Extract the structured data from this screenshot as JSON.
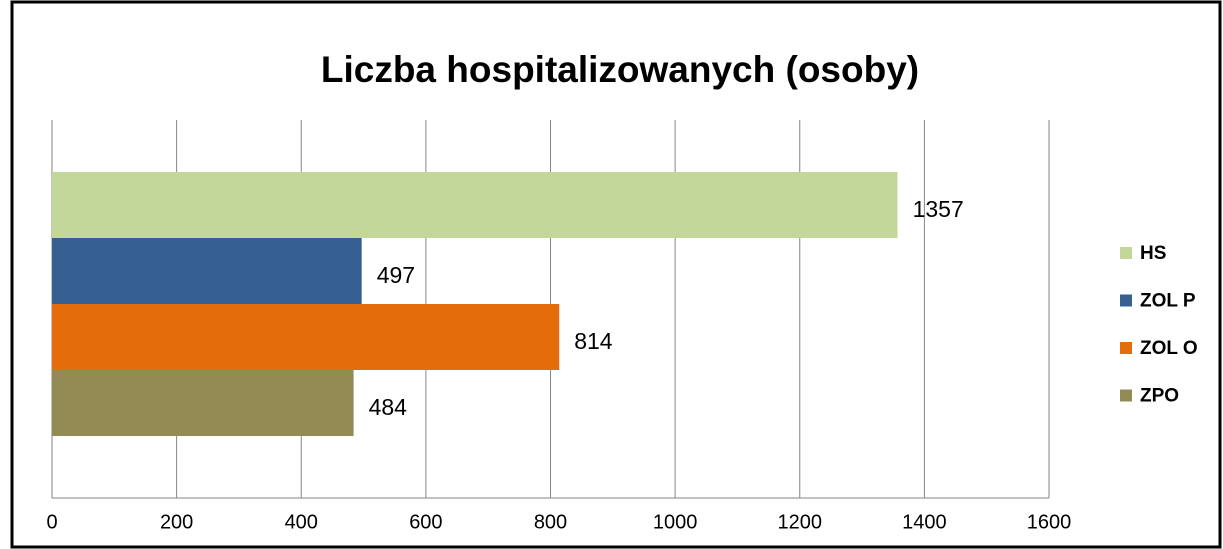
{
  "chart_data": {
    "type": "bar",
    "orientation": "horizontal",
    "title": "Liczba hospitalizowanych  (osoby)",
    "categories": [
      null
    ],
    "series": [
      {
        "name": "HS",
        "color": "#c4d79b",
        "values": [
          1357
        ]
      },
      {
        "name": "ZOL P",
        "color": "#366092",
        "values": [
          497
        ]
      },
      {
        "name": "ZOL O",
        "color": "#e46c0a",
        "values": [
          814
        ]
      },
      {
        "name": "ZPO",
        "color": "#948a54",
        "values": [
          484
        ]
      }
    ],
    "xlim": [
      0,
      1600
    ],
    "xticks": [
      0,
      200,
      400,
      600,
      800,
      1000,
      1200,
      1400,
      1600
    ],
    "grid": true,
    "legend": "right"
  }
}
